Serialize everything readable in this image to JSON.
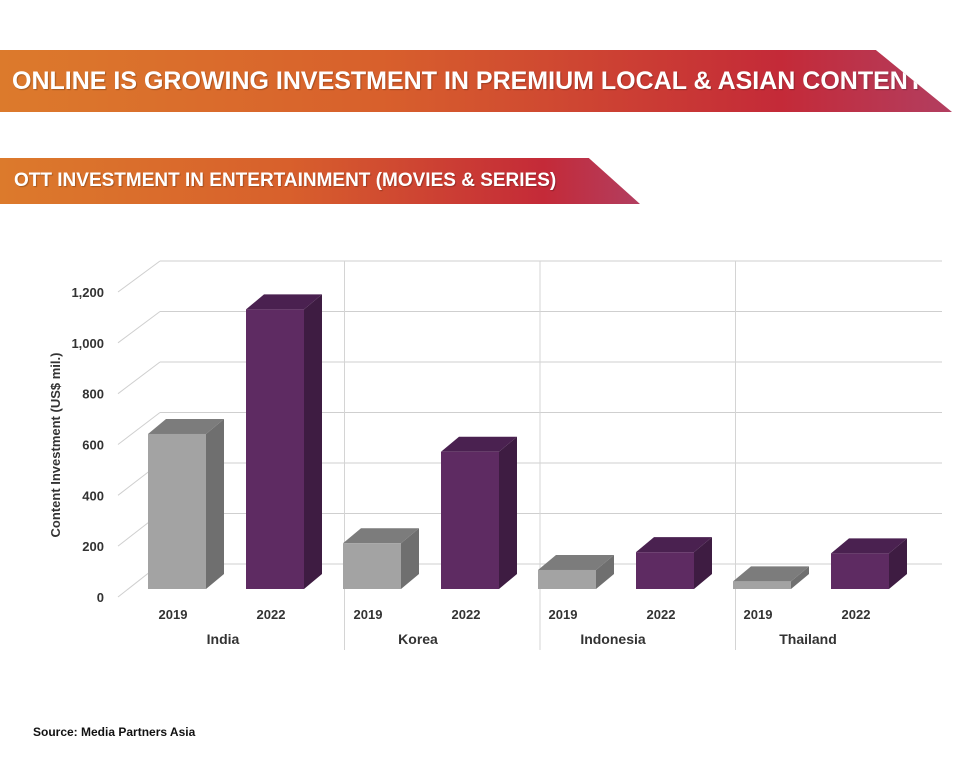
{
  "header": {
    "title": "ONLINE IS GROWING INVESTMENT IN PREMIUM LOCAL & ASIAN CONTENT",
    "subtitle": "OTT INVESTMENT IN ENTERTAINMENT (MOVIES & SERIES)"
  },
  "footer": {
    "source": "Source: Media Partners Asia"
  },
  "colors": {
    "bar_2019": "#a3a3a3",
    "bar_2022": "#5e2b62",
    "banner_start": "#dc7a2c",
    "banner_end": "#b23e60"
  },
  "chart_data": {
    "type": "bar",
    "categories": [
      "India",
      "Korea",
      "Indonesia",
      "Thailand"
    ],
    "series": [
      {
        "name": "2019",
        "values": [
          610,
          180,
          75,
          30
        ]
      },
      {
        "name": "2022",
        "values": [
          1100,
          540,
          145,
          140
        ]
      }
    ],
    "ylabel": "Content Investment (US$ mil.)",
    "ylim": [
      0,
      1200
    ],
    "yticks": [
      "0",
      "200",
      "400",
      "600",
      "800",
      "1,000",
      "1,200"
    ],
    "grid": true,
    "style": "3d-bar"
  }
}
